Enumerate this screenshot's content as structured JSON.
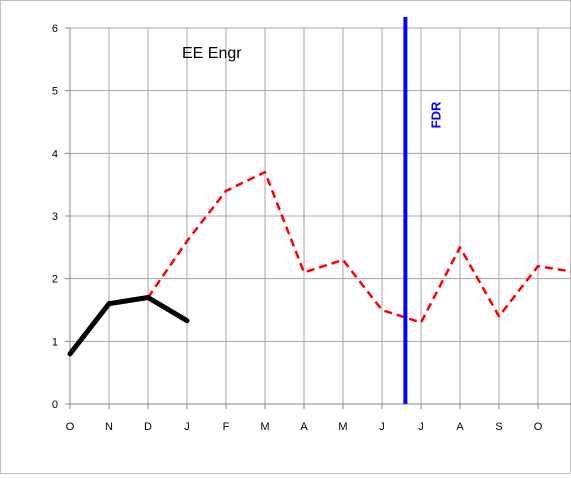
{
  "chart_data": {
    "type": "line",
    "title": "EE Engr",
    "xlabel": "",
    "ylabel": "",
    "categories": [
      "O",
      "N",
      "D",
      "J",
      "F",
      "M",
      "A",
      "M",
      "J",
      "J",
      "A",
      "S",
      "O",
      ""
    ],
    "ylim": [
      0,
      6
    ],
    "yticks": [
      "0",
      "1",
      "2",
      "3",
      "4",
      "5",
      "6"
    ],
    "grid": true,
    "series": [
      {
        "style": "dashed",
        "color": "#ff0000",
        "x": [
          2,
          3,
          4,
          5,
          6,
          7,
          8,
          9,
          10,
          11,
          12,
          13
        ],
        "values": [
          1.7,
          2.6,
          3.4,
          3.7,
          2.1,
          2.3,
          1.5,
          1.3,
          2.5,
          1.4,
          2.2,
          2.1
        ]
      },
      {
        "style": "solid-thick",
        "color": "#000000",
        "x": [
          0,
          1,
          2,
          3
        ],
        "values": [
          0.8,
          1.6,
          1.7,
          1.33
        ]
      }
    ],
    "annotations": [
      {
        "label": "FDR",
        "x": 8.6,
        "color": "#0000ff"
      }
    ]
  }
}
